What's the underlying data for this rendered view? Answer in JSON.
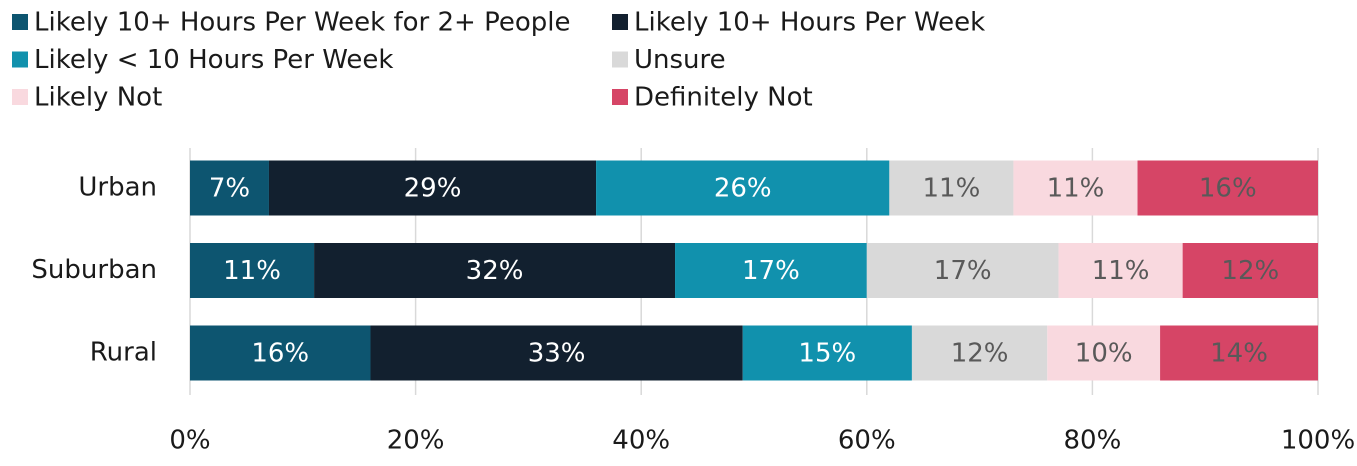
{
  "chart_data": {
    "type": "stacked_bar_horizontal",
    "categories": [
      "Urban",
      "Suburban",
      "Rural"
    ],
    "series": [
      {
        "name": "Likely 10+ Hours Per Week for 2+ People",
        "color": "#0d5570",
        "label_color": "#ffffff",
        "values": [
          7,
          11,
          16
        ],
        "value_labels": [
          "7%",
          "11%",
          "16%"
        ]
      },
      {
        "name": "Likely 10+ Hours Per Week",
        "color": "#12202f",
        "label_color": "#ffffff",
        "values": [
          29,
          32,
          33
        ],
        "value_labels": [
          "29%",
          "32%",
          "33%"
        ]
      },
      {
        "name": "Likely < 10 Hours Per Week",
        "color": "#1191ad",
        "label_color": "#ffffff",
        "values": [
          26,
          17,
          15
        ],
        "value_labels": [
          "26%",
          "17%",
          "15%"
        ]
      },
      {
        "name": "Unsure",
        "color": "#d9d9d9",
        "label_color": "#595959",
        "values": [
          11,
          17,
          12
        ],
        "value_labels": [
          "11%",
          "17%",
          "12%"
        ]
      },
      {
        "name": "Likely Not",
        "color": "#f9d9df",
        "label_color": "#595959",
        "values": [
          11,
          11,
          10
        ],
        "value_labels": [
          "11%",
          "11%",
          "10%"
        ]
      },
      {
        "name": "Definitely Not",
        "color": "#d64566",
        "label_color": "#595959",
        "values": [
          16,
          12,
          14
        ],
        "value_labels": [
          "16%",
          "12%",
          "14%"
        ]
      }
    ],
    "xlim": [
      0,
      100
    ],
    "xticks": [
      {
        "value": 0,
        "label": "0%"
      },
      {
        "value": 20,
        "label": "20%"
      },
      {
        "value": 40,
        "label": "40%"
      },
      {
        "value": 60,
        "label": "60%"
      },
      {
        "value": 80,
        "label": "80%"
      },
      {
        "value": 100,
        "label": "100%"
      }
    ],
    "grid": true,
    "legend": "top"
  }
}
